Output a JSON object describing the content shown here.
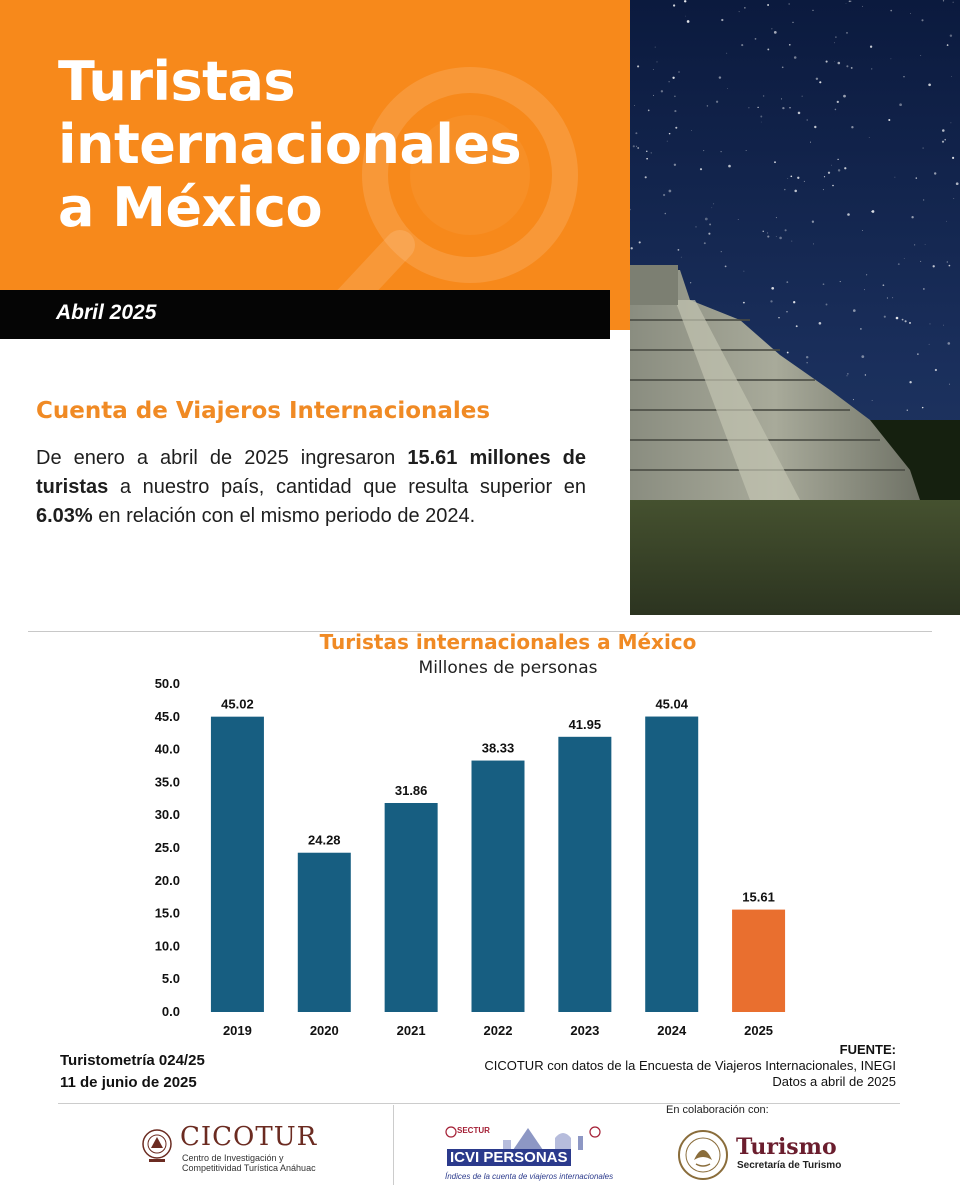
{
  "header": {
    "title_lines": [
      "Turistas",
      "internacionales",
      "a México"
    ],
    "date": "Abril 2025"
  },
  "section": {
    "heading": "Cuenta de Viajeros Internacionales",
    "summary_parts": [
      "De enero a abril de 2025 ingresaron ",
      "15.61 millones de turistas",
      " a nuestro país, cantidad que resulta superior en ",
      "6.03%",
      " en relación con el mismo periodo de 2024."
    ]
  },
  "chart_data": {
    "type": "bar",
    "title": "Turistas internacionales a México",
    "subtitle": "Millones de personas",
    "categories": [
      "2019",
      "2020",
      "2021",
      "2022",
      "2023",
      "2024",
      "2025"
    ],
    "values": [
      45.02,
      24.28,
      31.86,
      38.33,
      41.95,
      45.04,
      15.61
    ],
    "data_labels": [
      "45.02",
      "24.28",
      "31.86",
      "38.33",
      "41.95",
      "45.04",
      "15.61"
    ],
    "ylim": [
      0,
      50
    ],
    "yticks": [
      "0.0",
      "5.0",
      "10.0",
      "15.0",
      "20.0",
      "25.0",
      "30.0",
      "35.0",
      "40.0",
      "45.0",
      "50.0"
    ],
    "grid": false,
    "bar_color": "#175e81",
    "highlight_color": "#e96f2f",
    "highlight_index": 6
  },
  "footer": {
    "turistometria": "Turistometría 024/25",
    "pub_date": "11 de junio de 2025",
    "source_label": "FUENTE:",
    "source_line1": "CICOTUR con datos de la Encuesta de Viajeros Internacionales, INEGI",
    "source_line2": "Datos a abril de 2025",
    "collab": "En colaboración con:"
  },
  "logos": {
    "cicotur_name": "CICOTUR",
    "cicotur_sub1": "Centro de Investigación y",
    "cicotur_sub2": "Competitividad Turística Anáhuac",
    "cicotur_icon": "anahuac-seal-icon",
    "icvi_sectur": "SECTUR",
    "icvi_name": "ICVI PERSONAS",
    "icvi_sub": "Índices de la cuenta de viajeros internacionales",
    "icvi_icon": "pyramid-landmarks-icon",
    "turismo_name": "Turismo",
    "turismo_sub": "Secretaría de Turismo",
    "turismo_icon": "mexico-eagle-seal-icon"
  },
  "colors": {
    "orange": "#f7891b",
    "heading_orange": "#f08a24",
    "black_bar": "#050505"
  }
}
